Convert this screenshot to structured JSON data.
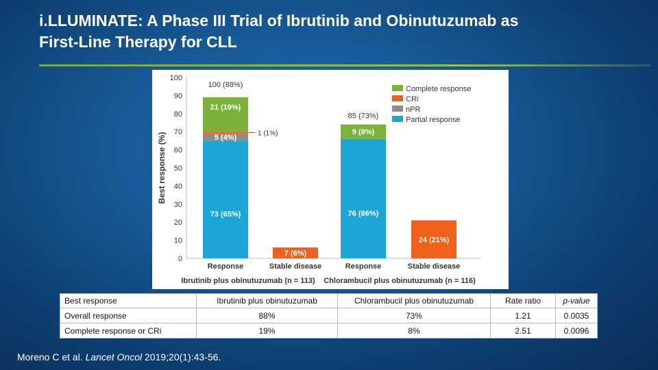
{
  "slide": {
    "title_line1": "i.LLUMINATE: A Phase III Trial of Ibrutinib and Obinutuzumab as",
    "title_line2": "First-Line Therapy for CLL"
  },
  "colors": {
    "complete": "#7ab23a",
    "cri": "#f0621c",
    "npr": "#8c8c8c",
    "partial": "#1ba6d5"
  },
  "chart_data": {
    "type": "bar",
    "stacked": true,
    "ylabel": "Best response (%)",
    "ylim": [
      0,
      100
    ],
    "yticks": [
      0,
      10,
      20,
      30,
      40,
      50,
      60,
      70,
      80,
      90,
      100
    ],
    "grid": false,
    "legend_position": "top-right",
    "legend": [
      "Complete response",
      "CRi",
      "nPR",
      "Partial response"
    ],
    "groups": [
      {
        "label": "Ibrutinib plus obinutuzumab (n = 113)"
      },
      {
        "label": "Chlorambucil plus obinutuzumab (n = 116)"
      }
    ],
    "bars": [
      {
        "category": "Response",
        "group": 0,
        "total_label": "100 (88%)",
        "segments": [
          {
            "series": "Partial response",
            "value": 65,
            "label": "73 (65%)"
          },
          {
            "series": "nPR",
            "value": 4,
            "label": "5 (4%)"
          },
          {
            "series": "CRi",
            "value": 1,
            "label": "1 (1%)"
          },
          {
            "series": "Complete response",
            "value": 19,
            "label": "21 (19%)"
          }
        ]
      },
      {
        "category": "Stable disease",
        "group": 0,
        "segments": [
          {
            "series": "CRi",
            "value": 6,
            "label": "7 (6%)"
          }
        ]
      },
      {
        "category": "Response",
        "group": 1,
        "total_label": "85 (73%)",
        "segments": [
          {
            "series": "Partial response",
            "value": 66,
            "label": "76 (66%)"
          },
          {
            "series": "Complete response",
            "value": 8,
            "label": "9 (8%)"
          }
        ]
      },
      {
        "category": "Stable disease",
        "group": 1,
        "segments": [
          {
            "series": "CRi",
            "value": 21,
            "label": "24 (21%)"
          }
        ]
      }
    ]
  },
  "table": {
    "headers": [
      "Best response",
      "Ibrutinib plus obinutuzumab",
      "Chlorambucil plus obinutuzumab",
      "Rate ratio",
      "p-value"
    ],
    "rows": [
      [
        "Overall response",
        "88%",
        "73%",
        "1.21",
        "0.0035"
      ],
      [
        "Complete response or CRi",
        "19%",
        "8%",
        "2.51",
        "0.0096"
      ]
    ]
  },
  "citation": {
    "authors": "Moreno C et al.",
    "journal": "Lancet Oncol",
    "ref": "2019;20(1):43-56."
  }
}
